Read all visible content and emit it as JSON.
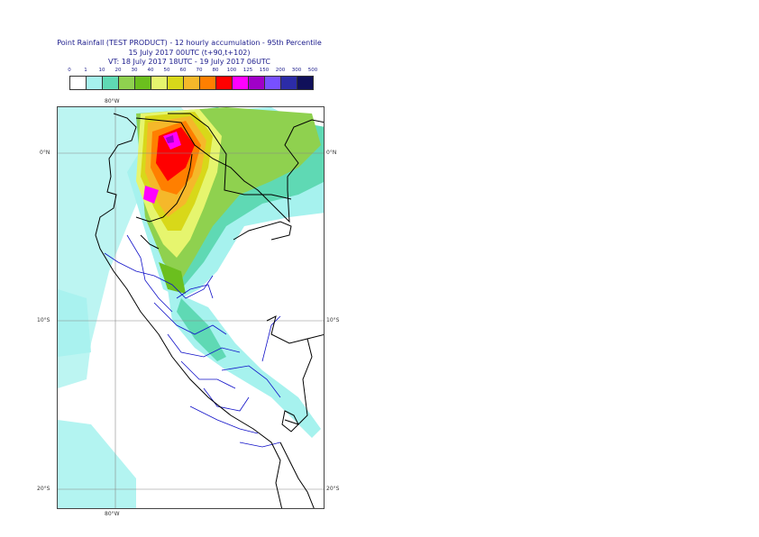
{
  "header": {
    "title": "Point Rainfall (TEST PRODUCT) - 12 hourly accumulation - 95th Percentile",
    "run": "15 July 2017 00UTC (t+90,t+102)",
    "valid": "VT: 18 July 2017 18UTC - 19 July 2017 06UTC"
  },
  "legend": {
    "ticks": [
      "0",
      "1",
      "10",
      "20",
      "30",
      "40",
      "50",
      "60",
      "70",
      "80",
      "100",
      "125",
      "150",
      "200",
      "300",
      "500"
    ],
    "colors": [
      "#ffffff",
      "#a6f2ee",
      "#5fd9b4",
      "#8fd14f",
      "#6bbf1e",
      "#e6f56e",
      "#d8d819",
      "#f5b82a",
      "#ff7f00",
      "#ff0000",
      "#ff00ff",
      "#a000c8",
      "#7850ff",
      "#2c2ca8",
      "#10105a"
    ]
  },
  "map": {
    "lon_labels": {
      "top": "80°W",
      "bottom": "80°W"
    },
    "lat_labels": [
      "0°N",
      "10°S",
      "20°S"
    ],
    "rain_colors": {
      "light": "#a6f2ee",
      "moderate": "#5fd9b4",
      "green": "#8fd14f",
      "darkgreen": "#6bbf1e",
      "yellow": "#e6f56e",
      "olive": "#d8d819",
      "orange": "#f5b82a",
      "deeporange": "#ff7f00",
      "red": "#ff0000",
      "magenta": "#ff00ff",
      "purple": "#a000c8"
    },
    "border_colors": {
      "national": "#000000",
      "regional": "#1010c8"
    }
  }
}
